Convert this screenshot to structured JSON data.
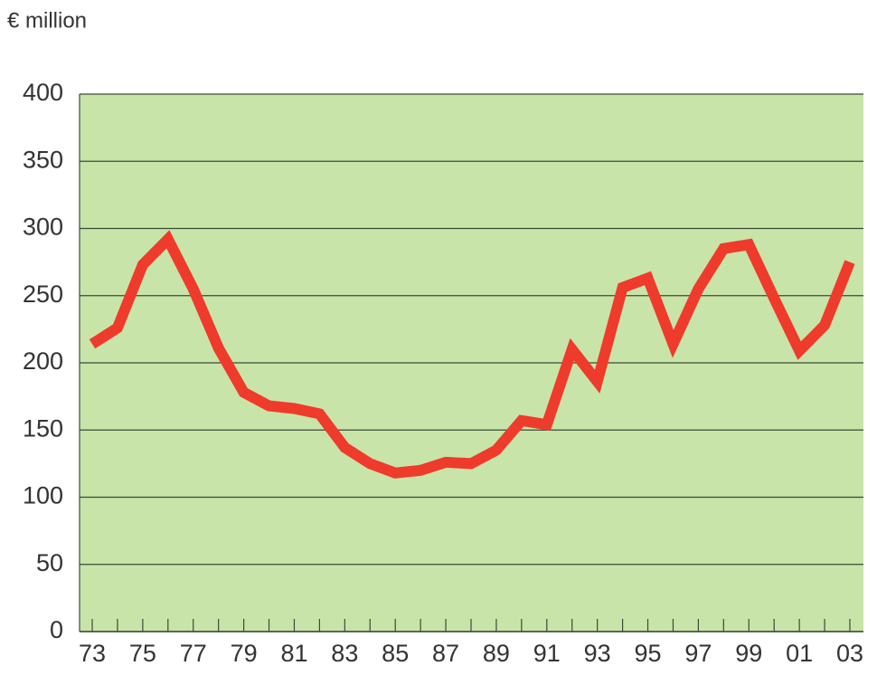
{
  "chart_data": {
    "type": "line",
    "ylabel": "€ million",
    "categories": [
      "73",
      null,
      "75",
      null,
      "77",
      null,
      "79",
      null,
      "81",
      null,
      "83",
      null,
      "85",
      null,
      "87",
      null,
      "89",
      null,
      "91",
      null,
      "93",
      null,
      "95",
      null,
      "97",
      null,
      "99",
      null,
      "01",
      null,
      "03"
    ],
    "series": [
      {
        "name": "€ million",
        "color": "#ee3b2b",
        "values": [
          214,
          226,
          273,
          292,
          255,
          211,
          178,
          168,
          166,
          162,
          137,
          125,
          118,
          120,
          126,
          125,
          135,
          157,
          154,
          210,
          186,
          256,
          263,
          214,
          255,
          285,
          288,
          248,
          209,
          228,
          275
        ]
      }
    ],
    "ylim": [
      0,
      400
    ],
    "yticks": [
      0,
      50,
      100,
      150,
      200,
      250,
      300,
      350,
      400
    ],
    "grid": true,
    "background": "#c9e4a8"
  }
}
